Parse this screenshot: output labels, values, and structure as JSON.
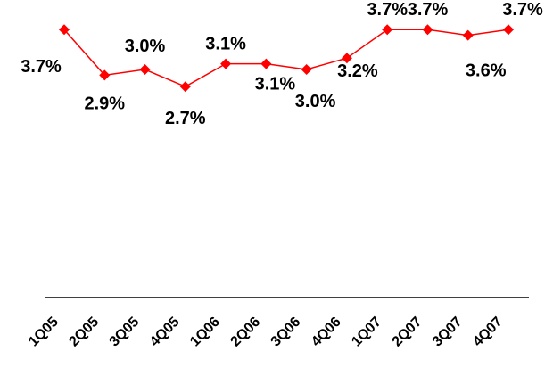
{
  "chart_data": {
    "type": "line",
    "categories": [
      "1Q05",
      "2Q05",
      "3Q05",
      "4Q05",
      "1Q06",
      "2Q06",
      "3Q06",
      "4Q06",
      "1Q07",
      "2Q07",
      "3Q07",
      "4Q07"
    ],
    "series": [
      {
        "values": [
          3.7,
          2.9,
          3.0,
          2.7,
          3.1,
          3.1,
          3.0,
          3.2,
          3.7,
          3.7,
          3.6,
          3.7
        ],
        "labels": [
          "3.7%",
          "2.9%",
          "3.0%",
          "2.7%",
          "3.1%",
          "3.1%",
          "3.0%",
          "3.2%",
          "3.7%",
          "3.7%",
          "3.6%",
          "3.7%"
        ],
        "color": "#ff0000"
      }
    ],
    "title": "",
    "xlabel": "",
    "ylabel": "",
    "ylim": [
      -1.0,
      4.0
    ],
    "grid": false,
    "legend": "none"
  }
}
